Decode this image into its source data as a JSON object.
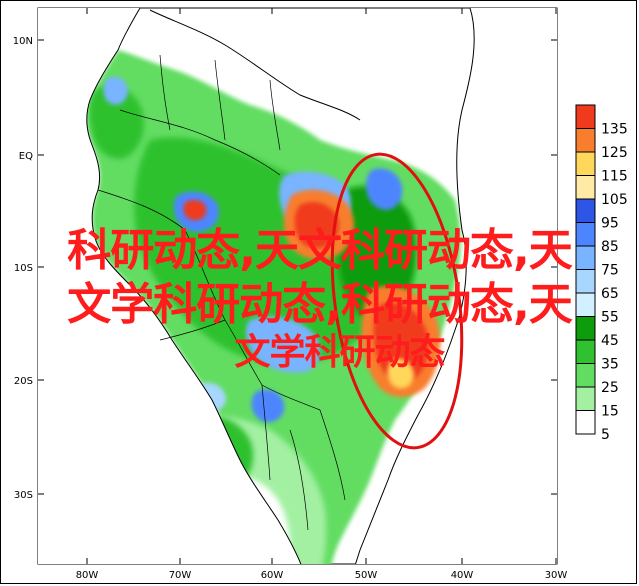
{
  "map": {
    "latitude_labels": [
      "10N",
      "EQ",
      "10S",
      "20S",
      "30S"
    ],
    "longitude_labels": [
      "80W",
      "70W",
      "60W",
      "50W",
      "40W",
      "30W"
    ]
  },
  "legend": {
    "levels": [
      {
        "value": "135",
        "color": "#f03a1e"
      },
      {
        "value": "125",
        "color": "#f87e2d"
      },
      {
        "value": "115",
        "color": "#ffd75a"
      },
      {
        "value": "105",
        "color": "#ffeaa6"
      },
      {
        "value": "95",
        "color": "#2d55e6"
      },
      {
        "value": "85",
        "color": "#4d85ff"
      },
      {
        "value": "75",
        "color": "#78b4ff"
      },
      {
        "value": "65",
        "color": "#a7d6ff"
      },
      {
        "value": "55",
        "color": "#d2f0ff"
      },
      {
        "value": "45",
        "color": "#0c9c0c"
      },
      {
        "value": "35",
        "color": "#2fc12f"
      },
      {
        "value": "25",
        "color": "#62dd62"
      },
      {
        "value": "15",
        "color": "#a3f0a3"
      },
      {
        "value": "5",
        "color": "#ffffff"
      }
    ]
  },
  "overlay": {
    "line1": "科研动态,天文科研动态,天",
    "line2": "文学科研动态,科研动态,天",
    "line3": "文学科研动态"
  },
  "annotation_color": "#e01010"
}
